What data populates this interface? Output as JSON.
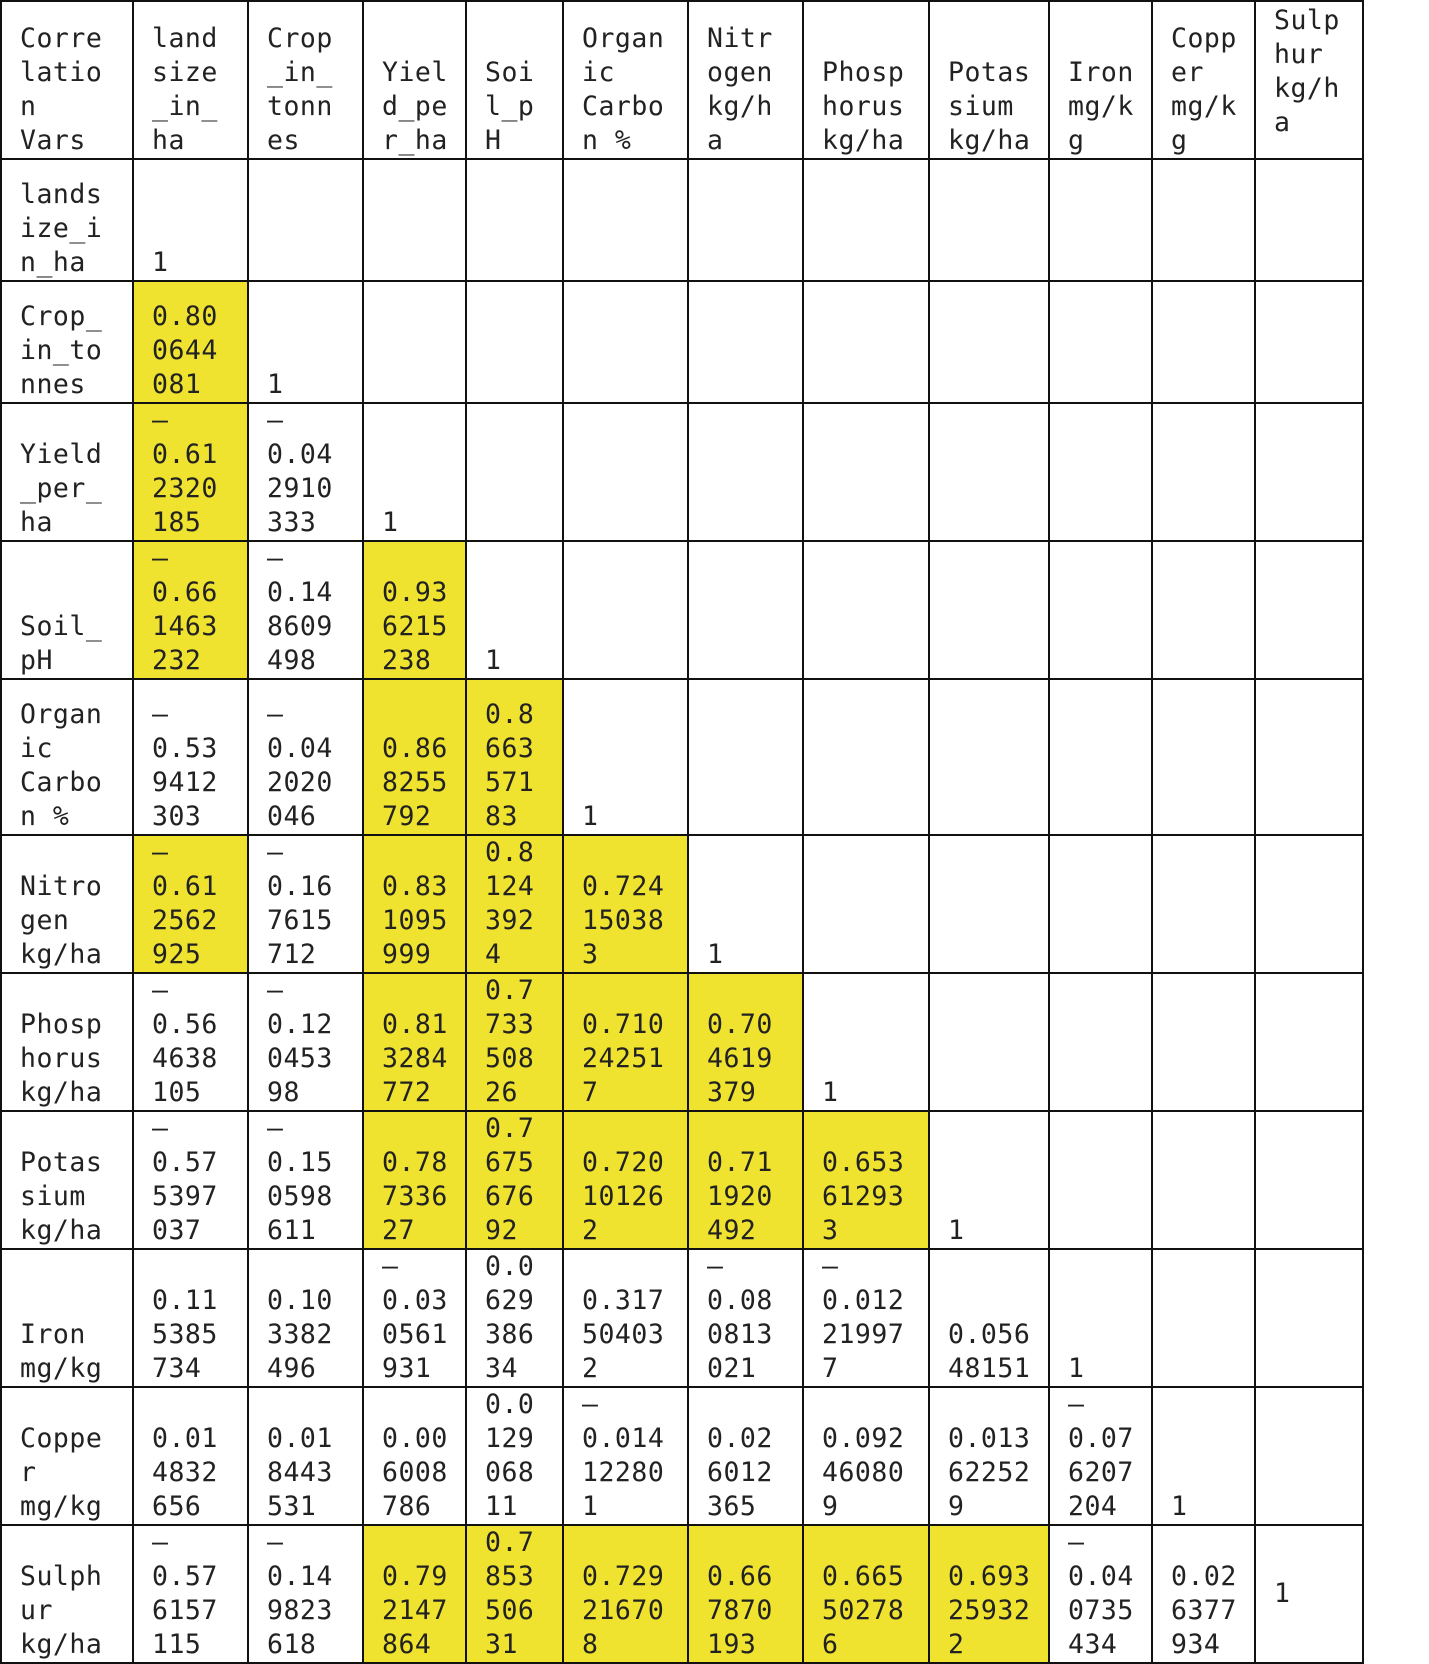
{
  "headers": [
    "Corre\nlatio\nn\nVars",
    "land\nsize\n_in_\nha",
    "Crop\n_in_\ntonn\nes",
    "Yiel\nd_pe\nr_ha",
    "Soi\nl_p\nH",
    "Organ\nic\nCarbo\nn %",
    "Nitr\nogen\nkg/h\na",
    "Phosp\nhorus\nkg/ha",
    "Potas\nsium\nkg/ha",
    "Iron\nmg/k\ng",
    "Copp\ner\nmg/k\ng",
    "Sulp\nhur\nkg/h\na"
  ],
  "rows": [
    {
      "label": "lands\nize_i\nn_ha",
      "cells": [
        {
          "v": "1",
          "hl": false
        },
        {
          "v": "",
          "hl": false
        },
        {
          "v": "",
          "hl": false
        },
        {
          "v": "",
          "hl": false
        },
        {
          "v": "",
          "hl": false
        },
        {
          "v": "",
          "hl": false
        },
        {
          "v": "",
          "hl": false
        },
        {
          "v": "",
          "hl": false
        },
        {
          "v": "",
          "hl": false
        },
        {
          "v": "",
          "hl": false
        },
        {
          "v": "",
          "hl": false
        }
      ]
    },
    {
      "label": "Crop_\nin_to\nnnes",
      "cells": [
        {
          "v": "0.80\n0644\n081",
          "hl": true
        },
        {
          "v": "1",
          "hl": false
        },
        {
          "v": "",
          "hl": false
        },
        {
          "v": "",
          "hl": false
        },
        {
          "v": "",
          "hl": false
        },
        {
          "v": "",
          "hl": false
        },
        {
          "v": "",
          "hl": false
        },
        {
          "v": "",
          "hl": false
        },
        {
          "v": "",
          "hl": false
        },
        {
          "v": "",
          "hl": false
        },
        {
          "v": "",
          "hl": false
        }
      ]
    },
    {
      "label": "Yield\n_per_\nha",
      "cells": [
        {
          "v": "–\n0.61\n2320\n185",
          "hl": true
        },
        {
          "v": "–\n0.04\n2910\n333",
          "hl": false
        },
        {
          "v": "1",
          "hl": false
        },
        {
          "v": "",
          "hl": false
        },
        {
          "v": "",
          "hl": false
        },
        {
          "v": "",
          "hl": false
        },
        {
          "v": "",
          "hl": false
        },
        {
          "v": "",
          "hl": false
        },
        {
          "v": "",
          "hl": false
        },
        {
          "v": "",
          "hl": false
        },
        {
          "v": "",
          "hl": false
        }
      ]
    },
    {
      "label": "Soil_\npH",
      "cells": [
        {
          "v": "–\n0.66\n1463\n232",
          "hl": true
        },
        {
          "v": "–\n0.14\n8609\n498",
          "hl": false
        },
        {
          "v": "0.93\n6215\n238",
          "hl": true
        },
        {
          "v": "1",
          "hl": false
        },
        {
          "v": "",
          "hl": false
        },
        {
          "v": "",
          "hl": false
        },
        {
          "v": "",
          "hl": false
        },
        {
          "v": "",
          "hl": false
        },
        {
          "v": "",
          "hl": false
        },
        {
          "v": "",
          "hl": false
        },
        {
          "v": "",
          "hl": false
        }
      ]
    },
    {
      "label": "Organ\nic\nCarbo\nn %",
      "cells": [
        {
          "v": "–\n0.53\n9412\n303",
          "hl": false
        },
        {
          "v": "–\n0.04\n2020\n046",
          "hl": false
        },
        {
          "v": "0.86\n8255\n792",
          "hl": true
        },
        {
          "v": "0.8\n663\n571\n83",
          "hl": true
        },
        {
          "v": "1",
          "hl": false
        },
        {
          "v": "",
          "hl": false
        },
        {
          "v": "",
          "hl": false
        },
        {
          "v": "",
          "hl": false
        },
        {
          "v": "",
          "hl": false
        },
        {
          "v": "",
          "hl": false
        },
        {
          "v": "",
          "hl": false
        }
      ]
    },
    {
      "label": "Nitro\ngen\nkg/ha",
      "cells": [
        {
          "v": "–\n0.61\n2562\n925",
          "hl": true
        },
        {
          "v": "–\n0.16\n7615\n712",
          "hl": false
        },
        {
          "v": "0.83\n1095\n999",
          "hl": true
        },
        {
          "v": "0.8\n124\n392\n4",
          "hl": true
        },
        {
          "v": "0.724\n15038\n3",
          "hl": true
        },
        {
          "v": "1",
          "hl": false
        },
        {
          "v": "",
          "hl": false
        },
        {
          "v": "",
          "hl": false
        },
        {
          "v": "",
          "hl": false
        },
        {
          "v": "",
          "hl": false
        },
        {
          "v": "",
          "hl": false
        }
      ]
    },
    {
      "label": "Phosp\nhorus\nkg/ha",
      "cells": [
        {
          "v": "–\n0.56\n4638\n105",
          "hl": false
        },
        {
          "v": "–\n0.12\n0453\n98",
          "hl": false
        },
        {
          "v": "0.81\n3284\n772",
          "hl": true
        },
        {
          "v": "0.7\n733\n508\n26",
          "hl": true
        },
        {
          "v": "0.710\n24251\n7",
          "hl": true
        },
        {
          "v": "0.70\n4619\n379",
          "hl": true
        },
        {
          "v": "1",
          "hl": false
        },
        {
          "v": "",
          "hl": false
        },
        {
          "v": "",
          "hl": false
        },
        {
          "v": "",
          "hl": false
        },
        {
          "v": "",
          "hl": false
        }
      ]
    },
    {
      "label": "Potas\nsium\nkg/ha",
      "cells": [
        {
          "v": "–\n0.57\n5397\n037",
          "hl": false
        },
        {
          "v": "–\n0.15\n0598\n611",
          "hl": false
        },
        {
          "v": "0.78\n7336\n27",
          "hl": true
        },
        {
          "v": "0.7\n675\n676\n92",
          "hl": true
        },
        {
          "v": "0.720\n10126\n2",
          "hl": true
        },
        {
          "v": "0.71\n1920\n492",
          "hl": true
        },
        {
          "v": "0.653\n61293\n3",
          "hl": true
        },
        {
          "v": "1",
          "hl": false
        },
        {
          "v": "",
          "hl": false
        },
        {
          "v": "",
          "hl": false
        },
        {
          "v": "",
          "hl": false
        }
      ]
    },
    {
      "label": "Iron\nmg/kg",
      "cells": [
        {
          "v": "0.11\n5385\n734",
          "hl": false
        },
        {
          "v": "0.10\n3382\n496",
          "hl": false
        },
        {
          "v": "–\n0.03\n0561\n931",
          "hl": false
        },
        {
          "v": "0.0\n629\n386\n34",
          "hl": false
        },
        {
          "v": "0.317\n50403\n2",
          "hl": false
        },
        {
          "v": "–\n0.08\n0813\n021",
          "hl": false
        },
        {
          "v": "–\n0.012\n21997\n7",
          "hl": false
        },
        {
          "v": "0.056\n48151",
          "hl": false
        },
        {
          "v": "1",
          "hl": false
        },
        {
          "v": "",
          "hl": false
        },
        {
          "v": "",
          "hl": false
        }
      ]
    },
    {
      "label": "Coppe\nr\nmg/kg",
      "cells": [
        {
          "v": "0.01\n4832\n656",
          "hl": false
        },
        {
          "v": "0.01\n8443\n531",
          "hl": false
        },
        {
          "v": "0.00\n6008\n786",
          "hl": false
        },
        {
          "v": "0.0\n129\n068\n11",
          "hl": false
        },
        {
          "v": "–\n0.014\n12280\n1",
          "hl": false
        },
        {
          "v": "0.02\n6012\n365",
          "hl": false
        },
        {
          "v": "0.092\n46080\n9",
          "hl": false
        },
        {
          "v": "0.013\n62252\n9",
          "hl": false
        },
        {
          "v": "–\n0.07\n6207\n204",
          "hl": false
        },
        {
          "v": "1",
          "hl": false
        },
        {
          "v": "",
          "hl": false
        }
      ]
    },
    {
      "label": "Sulph\nur\nkg/ha",
      "cells": [
        {
          "v": "–\n0.57\n6157\n115",
          "hl": false
        },
        {
          "v": "–\n0.14\n9823\n618",
          "hl": false
        },
        {
          "v": "0.79\n2147\n864",
          "hl": true
        },
        {
          "v": "0.7\n853\n506\n31",
          "hl": true
        },
        {
          "v": "0.729\n21670\n8",
          "hl": true
        },
        {
          "v": "0.66\n7870\n193",
          "hl": true
        },
        {
          "v": "0.665\n50278\n6",
          "hl": true
        },
        {
          "v": "0.693\n25932\n2",
          "hl": true
        },
        {
          "v": "–\n0.04\n0735\n434",
          "hl": false
        },
        {
          "v": "0.02\n6377\n934",
          "hl": false
        },
        {
          "v": "1",
          "hl": false
        }
      ]
    }
  ]
}
